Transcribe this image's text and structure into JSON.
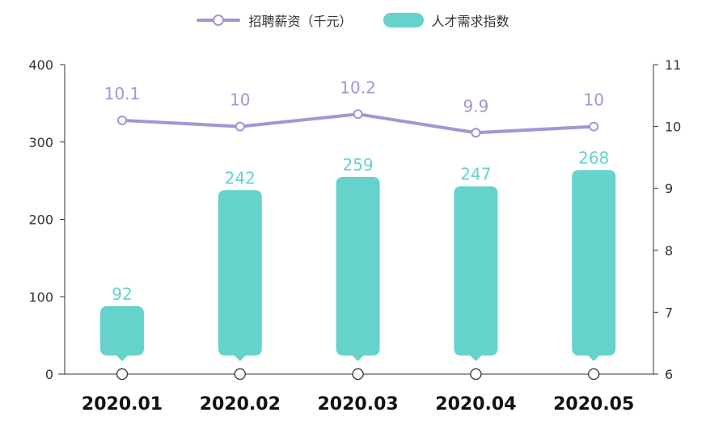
{
  "chart_data": {
    "type": "bar",
    "categories": [
      "2020.01",
      "2020.02",
      "2020.03",
      "2020.04",
      "2020.05"
    ],
    "series": [
      {
        "name": "人才需求指数",
        "type": "bar",
        "axis": "left",
        "values": [
          92,
          242,
          259,
          247,
          268
        ],
        "color": "#66d2cc"
      },
      {
        "name": "招聘薪资（千元）",
        "type": "line",
        "axis": "right",
        "values": [
          10.1,
          10,
          10.2,
          9.9,
          10
        ],
        "color": "#a097d6"
      }
    ],
    "y_left": {
      "range": [
        0,
        400
      ],
      "ticks": [
        "0",
        "100",
        "200",
        "300",
        "400"
      ]
    },
    "y_right": {
      "range": [
        6,
        11
      ],
      "ticks": [
        "6",
        "7",
        "8",
        "9",
        "10",
        "11"
      ]
    },
    "grid": false,
    "legend_position": "top-center"
  }
}
